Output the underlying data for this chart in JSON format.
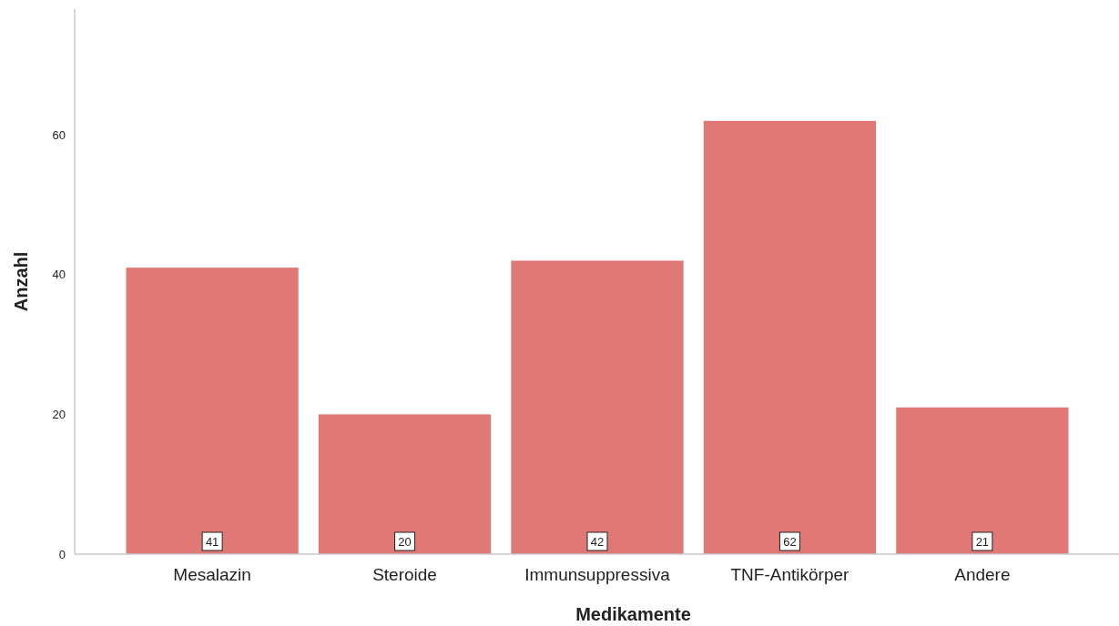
{
  "chart_data": {
    "type": "bar",
    "xlabel": "Medikamente",
    "ylabel": "Anzahl",
    "categories": [
      "Mesalazin",
      "Steroide",
      "Immunsuppressiva",
      "TNF-Antikörper",
      "Andere"
    ],
    "values": [
      41,
      20,
      42,
      62,
      21
    ],
    "color": "#e07876",
    "ylim": [
      0,
      78
    ],
    "yticks": [
      0,
      20,
      40,
      60
    ],
    "grid": false,
    "data_labels": true
  }
}
